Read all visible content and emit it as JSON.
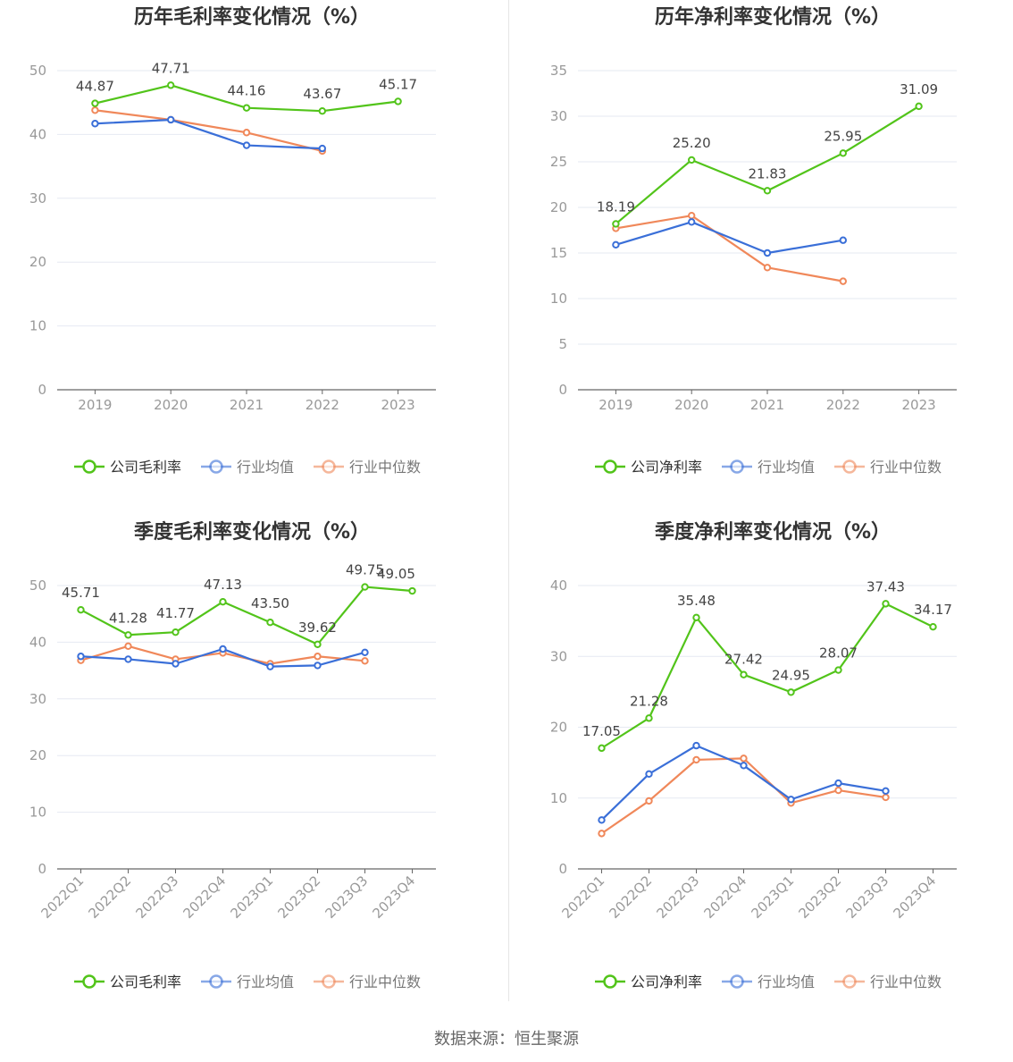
{
  "colors": {
    "company": "#52c41a",
    "avg": "#3a6fd8",
    "median": "#f0885a",
    "grid": "#e6e9f2",
    "axis": "#666666",
    "tick": "#999999",
    "label": "#444444",
    "title": "#333333"
  },
  "source": "数据来源：恒生聚源",
  "chart_data": [
    {
      "type": "line",
      "title": "历年毛利率变化情况（%）",
      "categories": [
        "2019",
        "2020",
        "2021",
        "2022",
        "2023"
      ],
      "ylim": [
        0,
        50
      ],
      "yticks": [
        "0",
        "10",
        "20",
        "30",
        "40",
        "50"
      ],
      "grid": true,
      "legend_position": "bottom",
      "series": [
        {
          "name": "公司毛利率",
          "color": "#52c41a",
          "values": [
            44.87,
            47.71,
            44.16,
            43.67,
            45.17
          ],
          "labels": [
            "44.87",
            "47.71",
            "44.16",
            "43.67",
            "45.17"
          ]
        },
        {
          "name": "行业均值",
          "color": "#3a6fd8",
          "values": [
            41.7,
            42.3,
            38.3,
            37.8,
            null
          ]
        },
        {
          "name": "行业中位数",
          "color": "#f0885a",
          "values": [
            43.8,
            42.3,
            40.3,
            37.4,
            null
          ]
        }
      ]
    },
    {
      "type": "line",
      "title": "历年净利率变化情况（%）",
      "categories": [
        "2019",
        "2020",
        "2021",
        "2022",
        "2023"
      ],
      "ylim": [
        0,
        35
      ],
      "yticks": [
        "0",
        "5",
        "10",
        "15",
        "20",
        "25",
        "30",
        "35"
      ],
      "grid": true,
      "legend_position": "bottom",
      "series": [
        {
          "name": "公司净利率",
          "color": "#52c41a",
          "values": [
            18.19,
            25.2,
            21.83,
            25.95,
            31.09
          ],
          "labels": [
            "18.19",
            "25.20",
            "21.83",
            "25.95",
            "31.09"
          ]
        },
        {
          "name": "行业均值",
          "color": "#3a6fd8",
          "values": [
            15.9,
            18.4,
            15.0,
            16.4,
            null
          ]
        },
        {
          "name": "行业中位数",
          "color": "#f0885a",
          "values": [
            17.7,
            19.1,
            13.4,
            11.9,
            null
          ]
        }
      ]
    },
    {
      "type": "line",
      "title": "季度毛利率变化情况（%）",
      "categories": [
        "2022Q1",
        "2022Q2",
        "2022Q3",
        "2022Q4",
        "2023Q1",
        "2023Q2",
        "2023Q3",
        "2023Q4"
      ],
      "ylim": [
        0,
        50
      ],
      "yticks": [
        "0",
        "10",
        "20",
        "30",
        "40",
        "50"
      ],
      "grid": true,
      "legend_position": "bottom",
      "series": [
        {
          "name": "公司毛利率",
          "color": "#52c41a",
          "values": [
            45.71,
            41.28,
            41.77,
            47.13,
            43.5,
            39.62,
            49.75,
            49.05
          ],
          "labels": [
            "45.71",
            "41.28",
            "41.77",
            "47.13",
            "43.50",
            "39.62",
            "49.75",
            "49.05"
          ]
        },
        {
          "name": "行业均值",
          "color": "#3a6fd8",
          "values": [
            37.5,
            37.0,
            36.2,
            38.8,
            35.7,
            35.9,
            38.2,
            null
          ]
        },
        {
          "name": "行业中位数",
          "color": "#f0885a",
          "values": [
            36.8,
            39.3,
            37.0,
            38.1,
            36.2,
            37.5,
            36.7,
            null
          ]
        }
      ]
    },
    {
      "type": "line",
      "title": "季度净利率变化情况（%）",
      "categories": [
        "2022Q1",
        "2022Q2",
        "2022Q3",
        "2022Q4",
        "2023Q1",
        "2023Q2",
        "2023Q3",
        "2023Q4"
      ],
      "ylim": [
        0,
        40
      ],
      "yticks": [
        "0",
        "10",
        "20",
        "30",
        "40"
      ],
      "grid": true,
      "legend_position": "bottom",
      "series": [
        {
          "name": "公司净利率",
          "color": "#52c41a",
          "values": [
            17.05,
            21.28,
            35.48,
            27.42,
            24.95,
            28.07,
            37.43,
            34.17
          ],
          "labels": [
            "17.05",
            "21.28",
            "35.48",
            "27.42",
            "24.95",
            "28.07",
            "37.43",
            "34.17"
          ]
        },
        {
          "name": "行业均值",
          "color": "#3a6fd8",
          "values": [
            6.9,
            13.4,
            17.4,
            14.6,
            9.8,
            12.1,
            11.0,
            null
          ]
        },
        {
          "name": "行业中位数",
          "color": "#f0885a",
          "values": [
            5.0,
            9.6,
            15.4,
            15.6,
            9.3,
            11.1,
            10.1,
            null
          ]
        }
      ]
    }
  ]
}
